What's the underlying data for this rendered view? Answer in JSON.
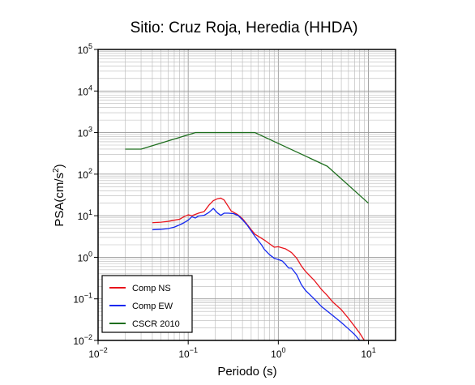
{
  "chart_data": {
    "type": "line",
    "title": "Sitio: Cruz Roja, Heredia (HHDA)",
    "xlabel": "Periodo (s)",
    "ylabel_parts": {
      "base": "PSA(cm/s",
      "sup": "2",
      "end": ")"
    },
    "x_scale": "log",
    "y_scale": "log",
    "xlim": [
      0.01,
      20
    ],
    "ylim": [
      0.01,
      100000
    ],
    "grid": true,
    "legend_placement": "bottom-left",
    "x_ticks": [
      {
        "base": "10",
        "exp": "−2",
        "value": 0.01
      },
      {
        "base": "10",
        "exp": "−1",
        "value": 0.1
      },
      {
        "base": "10",
        "exp": "0",
        "value": 1
      },
      {
        "base": "10",
        "exp": "1",
        "value": 10
      }
    ],
    "y_ticks": [
      {
        "base": "10",
        "exp": "−2",
        "value": 0.01
      },
      {
        "base": "10",
        "exp": "−1",
        "value": 0.1
      },
      {
        "base": "10",
        "exp": "0",
        "value": 1
      },
      {
        "base": "10",
        "exp": "1",
        "value": 10
      },
      {
        "base": "10",
        "exp": "2",
        "value": 100
      },
      {
        "base": "10",
        "exp": "3",
        "value": 1000
      },
      {
        "base": "10",
        "exp": "4",
        "value": 10000
      },
      {
        "base": "10",
        "exp": "5",
        "value": 100000
      }
    ],
    "series": [
      {
        "name": "Comp NS",
        "color": "#e8141c",
        "points": [
          [
            0.04,
            6.8
          ],
          [
            0.05,
            7.0
          ],
          [
            0.06,
            7.3
          ],
          [
            0.07,
            7.8
          ],
          [
            0.08,
            8.2
          ],
          [
            0.09,
            9.5
          ],
          [
            0.1,
            10.5
          ],
          [
            0.11,
            10.0
          ],
          [
            0.13,
            11.5
          ],
          [
            0.15,
            12.5
          ],
          [
            0.17,
            18
          ],
          [
            0.19,
            23
          ],
          [
            0.21,
            25.5
          ],
          [
            0.23,
            26.5
          ],
          [
            0.25,
            24
          ],
          [
            0.27,
            18.5
          ],
          [
            0.3,
            13
          ],
          [
            0.35,
            10.8
          ],
          [
            0.4,
            8.5
          ],
          [
            0.45,
            6.2
          ],
          [
            0.5,
            4.6
          ],
          [
            0.55,
            3.6
          ],
          [
            0.6,
            3.2
          ],
          [
            0.7,
            2.6
          ],
          [
            0.8,
            2.1
          ],
          [
            0.9,
            1.75
          ],
          [
            1.0,
            1.8
          ],
          [
            1.2,
            1.6
          ],
          [
            1.4,
            1.3
          ],
          [
            1.6,
            0.95
          ],
          [
            1.8,
            0.62
          ],
          [
            2.0,
            0.46
          ],
          [
            2.5,
            0.28
          ],
          [
            3.0,
            0.17
          ],
          [
            3.5,
            0.12
          ],
          [
            4.0,
            0.085
          ],
          [
            5.0,
            0.055
          ],
          [
            6.0,
            0.034
          ],
          [
            7.0,
            0.022
          ],
          [
            8.0,
            0.015
          ],
          [
            9.0,
            0.01
          ]
        ]
      },
      {
        "name": "Comp EW",
        "color": "#1428f0",
        "points": [
          [
            0.04,
            4.6
          ],
          [
            0.05,
            4.7
          ],
          [
            0.06,
            4.9
          ],
          [
            0.07,
            5.3
          ],
          [
            0.08,
            6.0
          ],
          [
            0.09,
            6.8
          ],
          [
            0.1,
            7.8
          ],
          [
            0.11,
            9.5
          ],
          [
            0.12,
            8.8
          ],
          [
            0.13,
            9.8
          ],
          [
            0.15,
            10.2
          ],
          [
            0.17,
            12
          ],
          [
            0.19,
            15
          ],
          [
            0.21,
            11.8
          ],
          [
            0.23,
            10.2
          ],
          [
            0.25,
            11.5
          ],
          [
            0.28,
            11.5
          ],
          [
            0.32,
            11.2
          ],
          [
            0.36,
            10
          ],
          [
            0.4,
            8
          ],
          [
            0.45,
            6
          ],
          [
            0.5,
            4.3
          ],
          [
            0.55,
            3.2
          ],
          [
            0.6,
            2.5
          ],
          [
            0.65,
            2.0
          ],
          [
            0.7,
            1.55
          ],
          [
            0.8,
            1.15
          ],
          [
            0.9,
            0.95
          ],
          [
            1.0,
            0.88
          ],
          [
            1.1,
            0.82
          ],
          [
            1.2,
            0.68
          ],
          [
            1.3,
            0.55
          ],
          [
            1.4,
            0.55
          ],
          [
            1.6,
            0.38
          ],
          [
            1.8,
            0.22
          ],
          [
            2.0,
            0.16
          ],
          [
            2.5,
            0.1
          ],
          [
            3.0,
            0.066
          ],
          [
            4.0,
            0.04
          ],
          [
            5.0,
            0.027
          ],
          [
            6.0,
            0.019
          ],
          [
            7.0,
            0.014
          ],
          [
            8.0,
            0.01
          ]
        ]
      },
      {
        "name": "CSCR 2010",
        "color": "#1e6e1e",
        "points": [
          [
            0.02,
            400
          ],
          [
            0.03,
            400
          ],
          [
            0.12,
            1000
          ],
          [
            0.55,
            1000
          ],
          [
            3.5,
            155
          ],
          [
            10,
            20
          ]
        ]
      }
    ]
  }
}
